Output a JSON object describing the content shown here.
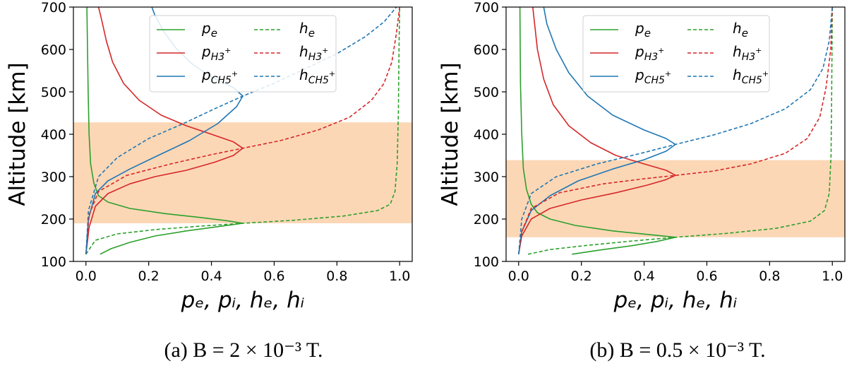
{
  "chart_data": [
    {
      "type": "line",
      "caption": "(a)  B = 2 × 10⁻³ T.",
      "ylabel": "Altitude [km]",
      "xlabel": "pₑ, pᵢ, hₑ, hᵢ",
      "xlim": [
        -0.04,
        1.04
      ],
      "ylim": [
        100,
        700
      ],
      "xticks": [
        "0.0",
        "0.2",
        "0.4",
        "0.6",
        "0.8",
        "1.0"
      ],
      "yticks": [
        "100",
        "200",
        "300",
        "400",
        "500",
        "600",
        "700"
      ],
      "highlight_band": [
        190,
        428
      ],
      "band_color": "#fcd7b6",
      "legend": [
        "pₑ",
        "p_H₃⁺",
        "p_CH₅⁺",
        "hₑ",
        "h_H₃⁺",
        "h_CH₅⁺"
      ],
      "series": [
        {
          "name": "pₑ",
          "color": "#2ca02c",
          "dash": false,
          "points": [
            [
              0.045,
              117
            ],
            [
              0.08,
              130
            ],
            [
              0.14,
              145
            ],
            [
              0.22,
              160
            ],
            [
              0.32,
              172
            ],
            [
              0.42,
              182
            ],
            [
              0.5,
              190
            ],
            [
              0.45,
              196
            ],
            [
              0.36,
              204
            ],
            [
              0.25,
              213
            ],
            [
              0.14,
              225
            ],
            [
              0.07,
              240
            ],
            [
              0.04,
              255
            ],
            [
              0.025,
              285
            ],
            [
              0.015,
              330
            ],
            [
              0.01,
              400
            ],
            [
              0.007,
              500
            ],
            [
              0.005,
              600
            ],
            [
              0.003,
              700
            ]
          ]
        },
        {
          "name": "p_H₃⁺",
          "color": "#d62728",
          "dash": false,
          "points": [
            [
              0.0,
              117
            ],
            [
              0.01,
              180
            ],
            [
              0.03,
              230
            ],
            [
              0.07,
              260
            ],
            [
              0.14,
              283
            ],
            [
              0.22,
              300
            ],
            [
              0.32,
              315
            ],
            [
              0.41,
              334
            ],
            [
              0.47,
              350
            ],
            [
              0.5,
              367
            ],
            [
              0.47,
              382
            ],
            [
              0.4,
              400
            ],
            [
              0.32,
              420
            ],
            [
              0.24,
              445
            ],
            [
              0.17,
              480
            ],
            [
              0.12,
              520
            ],
            [
              0.085,
              570
            ],
            [
              0.065,
              620
            ],
            [
              0.05,
              670
            ],
            [
              0.04,
              700
            ]
          ]
        },
        {
          "name": "p_CH₅⁺",
          "color": "#1f77b4",
          "dash": false,
          "points": [
            [
              0.0,
              117
            ],
            [
              0.008,
              200
            ],
            [
              0.03,
              260
            ],
            [
              0.07,
              290
            ],
            [
              0.14,
              318
            ],
            [
              0.23,
              350
            ],
            [
              0.33,
              385
            ],
            [
              0.42,
              425
            ],
            [
              0.48,
              465
            ],
            [
              0.5,
              490
            ],
            [
              0.47,
              510
            ],
            [
              0.4,
              535
            ],
            [
              0.34,
              565
            ],
            [
              0.29,
              600
            ],
            [
              0.25,
              640
            ],
            [
              0.22,
              680
            ],
            [
              0.21,
              700
            ]
          ]
        },
        {
          "name": "hₑ",
          "color": "#2ca02c",
          "dash": true,
          "points": [
            [
              0.0,
              117
            ],
            [
              0.03,
              150
            ],
            [
              0.1,
              165
            ],
            [
              0.22,
              175
            ],
            [
              0.36,
              183
            ],
            [
              0.5,
              190
            ],
            [
              0.66,
              197
            ],
            [
              0.82,
              207
            ],
            [
              0.93,
              220
            ],
            [
              0.97,
              235
            ],
            [
              0.985,
              265
            ],
            [
              0.992,
              330
            ],
            [
              0.996,
              450
            ],
            [
              0.998,
              600
            ],
            [
              1.0,
              700
            ]
          ]
        },
        {
          "name": "h_H₃⁺",
          "color": "#d62728",
          "dash": true,
          "points": [
            [
              0.0,
              117
            ],
            [
              0.01,
              210
            ],
            [
              0.04,
              265
            ],
            [
              0.13,
              303
            ],
            [
              0.27,
              330
            ],
            [
              0.4,
              352
            ],
            [
              0.5,
              367
            ],
            [
              0.62,
              385
            ],
            [
              0.74,
              410
            ],
            [
              0.84,
              440
            ],
            [
              0.91,
              480
            ],
            [
              0.95,
              520
            ],
            [
              0.975,
              570
            ],
            [
              0.99,
              640
            ],
            [
              1.0,
              700
            ]
          ]
        },
        {
          "name": "h_CH₅⁺",
          "color": "#1f77b4",
          "dash": true,
          "points": [
            [
              0.0,
              117
            ],
            [
              0.008,
              220
            ],
            [
              0.04,
              300
            ],
            [
              0.1,
              345
            ],
            [
              0.2,
              390
            ],
            [
              0.31,
              425
            ],
            [
              0.41,
              460
            ],
            [
              0.5,
              490
            ],
            [
              0.6,
              520
            ],
            [
              0.7,
              555
            ],
            [
              0.8,
              590
            ],
            [
              0.89,
              630
            ],
            [
              0.95,
              665
            ],
            [
              0.99,
              700
            ]
          ]
        }
      ]
    },
    {
      "type": "line",
      "caption": "(b)  B = 0.5 × 10⁻³ T.",
      "ylabel": "Altitude [km]",
      "xlabel": "pₑ, pᵢ, hₑ, hᵢ",
      "xlim": [
        -0.04,
        1.04
      ],
      "ylim": [
        100,
        700
      ],
      "xticks": [
        "0.0",
        "0.2",
        "0.4",
        "0.6",
        "0.8",
        "1.0"
      ],
      "yticks": [
        "100",
        "200",
        "300",
        "400",
        "500",
        "600",
        "700"
      ],
      "highlight_band": [
        157,
        339
      ],
      "band_color": "#fcd7b6",
      "legend": [
        "pₑ",
        "p_H₃⁺",
        "p_CH₅⁺",
        "hₑ",
        "h_H₃⁺",
        "h_CH₅⁺"
      ],
      "series": [
        {
          "name": "pₑ",
          "color": "#2ca02c",
          "dash": false,
          "points": [
            [
              0.17,
              117
            ],
            [
              0.26,
              127
            ],
            [
              0.36,
              137
            ],
            [
              0.44,
              147
            ],
            [
              0.5,
              157
            ],
            [
              0.42,
              163
            ],
            [
              0.3,
              172
            ],
            [
              0.18,
              185
            ],
            [
              0.1,
              200
            ],
            [
              0.06,
              215
            ],
            [
              0.04,
              235
            ],
            [
              0.025,
              270
            ],
            [
              0.015,
              320
            ],
            [
              0.01,
              400
            ],
            [
              0.006,
              520
            ],
            [
              0.004,
              700
            ]
          ]
        },
        {
          "name": "p_H₃⁺",
          "color": "#d62728",
          "dash": false,
          "points": [
            [
              0.0,
              117
            ],
            [
              0.01,
              160
            ],
            [
              0.04,
              200
            ],
            [
              0.1,
              225
            ],
            [
              0.2,
              245
            ],
            [
              0.31,
              262
            ],
            [
              0.41,
              280
            ],
            [
              0.47,
              293
            ],
            [
              0.5,
              303
            ],
            [
              0.47,
              315
            ],
            [
              0.4,
              330
            ],
            [
              0.31,
              350
            ],
            [
              0.23,
              380
            ],
            [
              0.16,
              420
            ],
            [
              0.11,
              470
            ],
            [
              0.08,
              530
            ],
            [
              0.06,
              600
            ],
            [
              0.045,
              700
            ]
          ]
        },
        {
          "name": "p_CH₅⁺",
          "color": "#1f77b4",
          "dash": false,
          "points": [
            [
              0.0,
              117
            ],
            [
              0.01,
              170
            ],
            [
              0.04,
              220
            ],
            [
              0.1,
              255
            ],
            [
              0.19,
              290
            ],
            [
              0.3,
              318
            ],
            [
              0.4,
              340
            ],
            [
              0.47,
              360
            ],
            [
              0.5,
              376
            ],
            [
              0.47,
              390
            ],
            [
              0.4,
              410
            ],
            [
              0.3,
              445
            ],
            [
              0.22,
              490
            ],
            [
              0.16,
              545
            ],
            [
              0.12,
              600
            ],
            [
              0.09,
              660
            ],
            [
              0.08,
              700
            ]
          ]
        },
        {
          "name": "hₑ",
          "color": "#2ca02c",
          "dash": true,
          "points": [
            [
              0.03,
              117
            ],
            [
              0.1,
              128
            ],
            [
              0.22,
              138
            ],
            [
              0.36,
              148
            ],
            [
              0.5,
              157
            ],
            [
              0.66,
              166
            ],
            [
              0.82,
              178
            ],
            [
              0.93,
              195
            ],
            [
              0.975,
              220
            ],
            [
              0.99,
              260
            ],
            [
              0.996,
              350
            ],
            [
              0.998,
              500
            ],
            [
              1.0,
              700
            ]
          ]
        },
        {
          "name": "h_H₃⁺",
          "color": "#d62728",
          "dash": true,
          "points": [
            [
              0.0,
              117
            ],
            [
              0.01,
              170
            ],
            [
              0.04,
              225
            ],
            [
              0.13,
              262
            ],
            [
              0.27,
              283
            ],
            [
              0.4,
              295
            ],
            [
              0.5,
              303
            ],
            [
              0.62,
              313
            ],
            [
              0.74,
              330
            ],
            [
              0.85,
              355
            ],
            [
              0.92,
              390
            ],
            [
              0.96,
              440
            ],
            [
              0.98,
              510
            ],
            [
              0.995,
              600
            ],
            [
              1.0,
              700
            ]
          ]
        },
        {
          "name": "h_CH₅⁺",
          "color": "#1f77b4",
          "dash": true,
          "points": [
            [
              0.0,
              117
            ],
            [
              0.01,
              200
            ],
            [
              0.04,
              260
            ],
            [
              0.12,
              300
            ],
            [
              0.25,
              330
            ],
            [
              0.39,
              355
            ],
            [
              0.5,
              376
            ],
            [
              0.62,
              398
            ],
            [
              0.74,
              425
            ],
            [
              0.85,
              460
            ],
            [
              0.93,
              505
            ],
            [
              0.97,
              555
            ],
            [
              0.99,
              620
            ],
            [
              1.0,
              700
            ]
          ]
        }
      ]
    }
  ]
}
